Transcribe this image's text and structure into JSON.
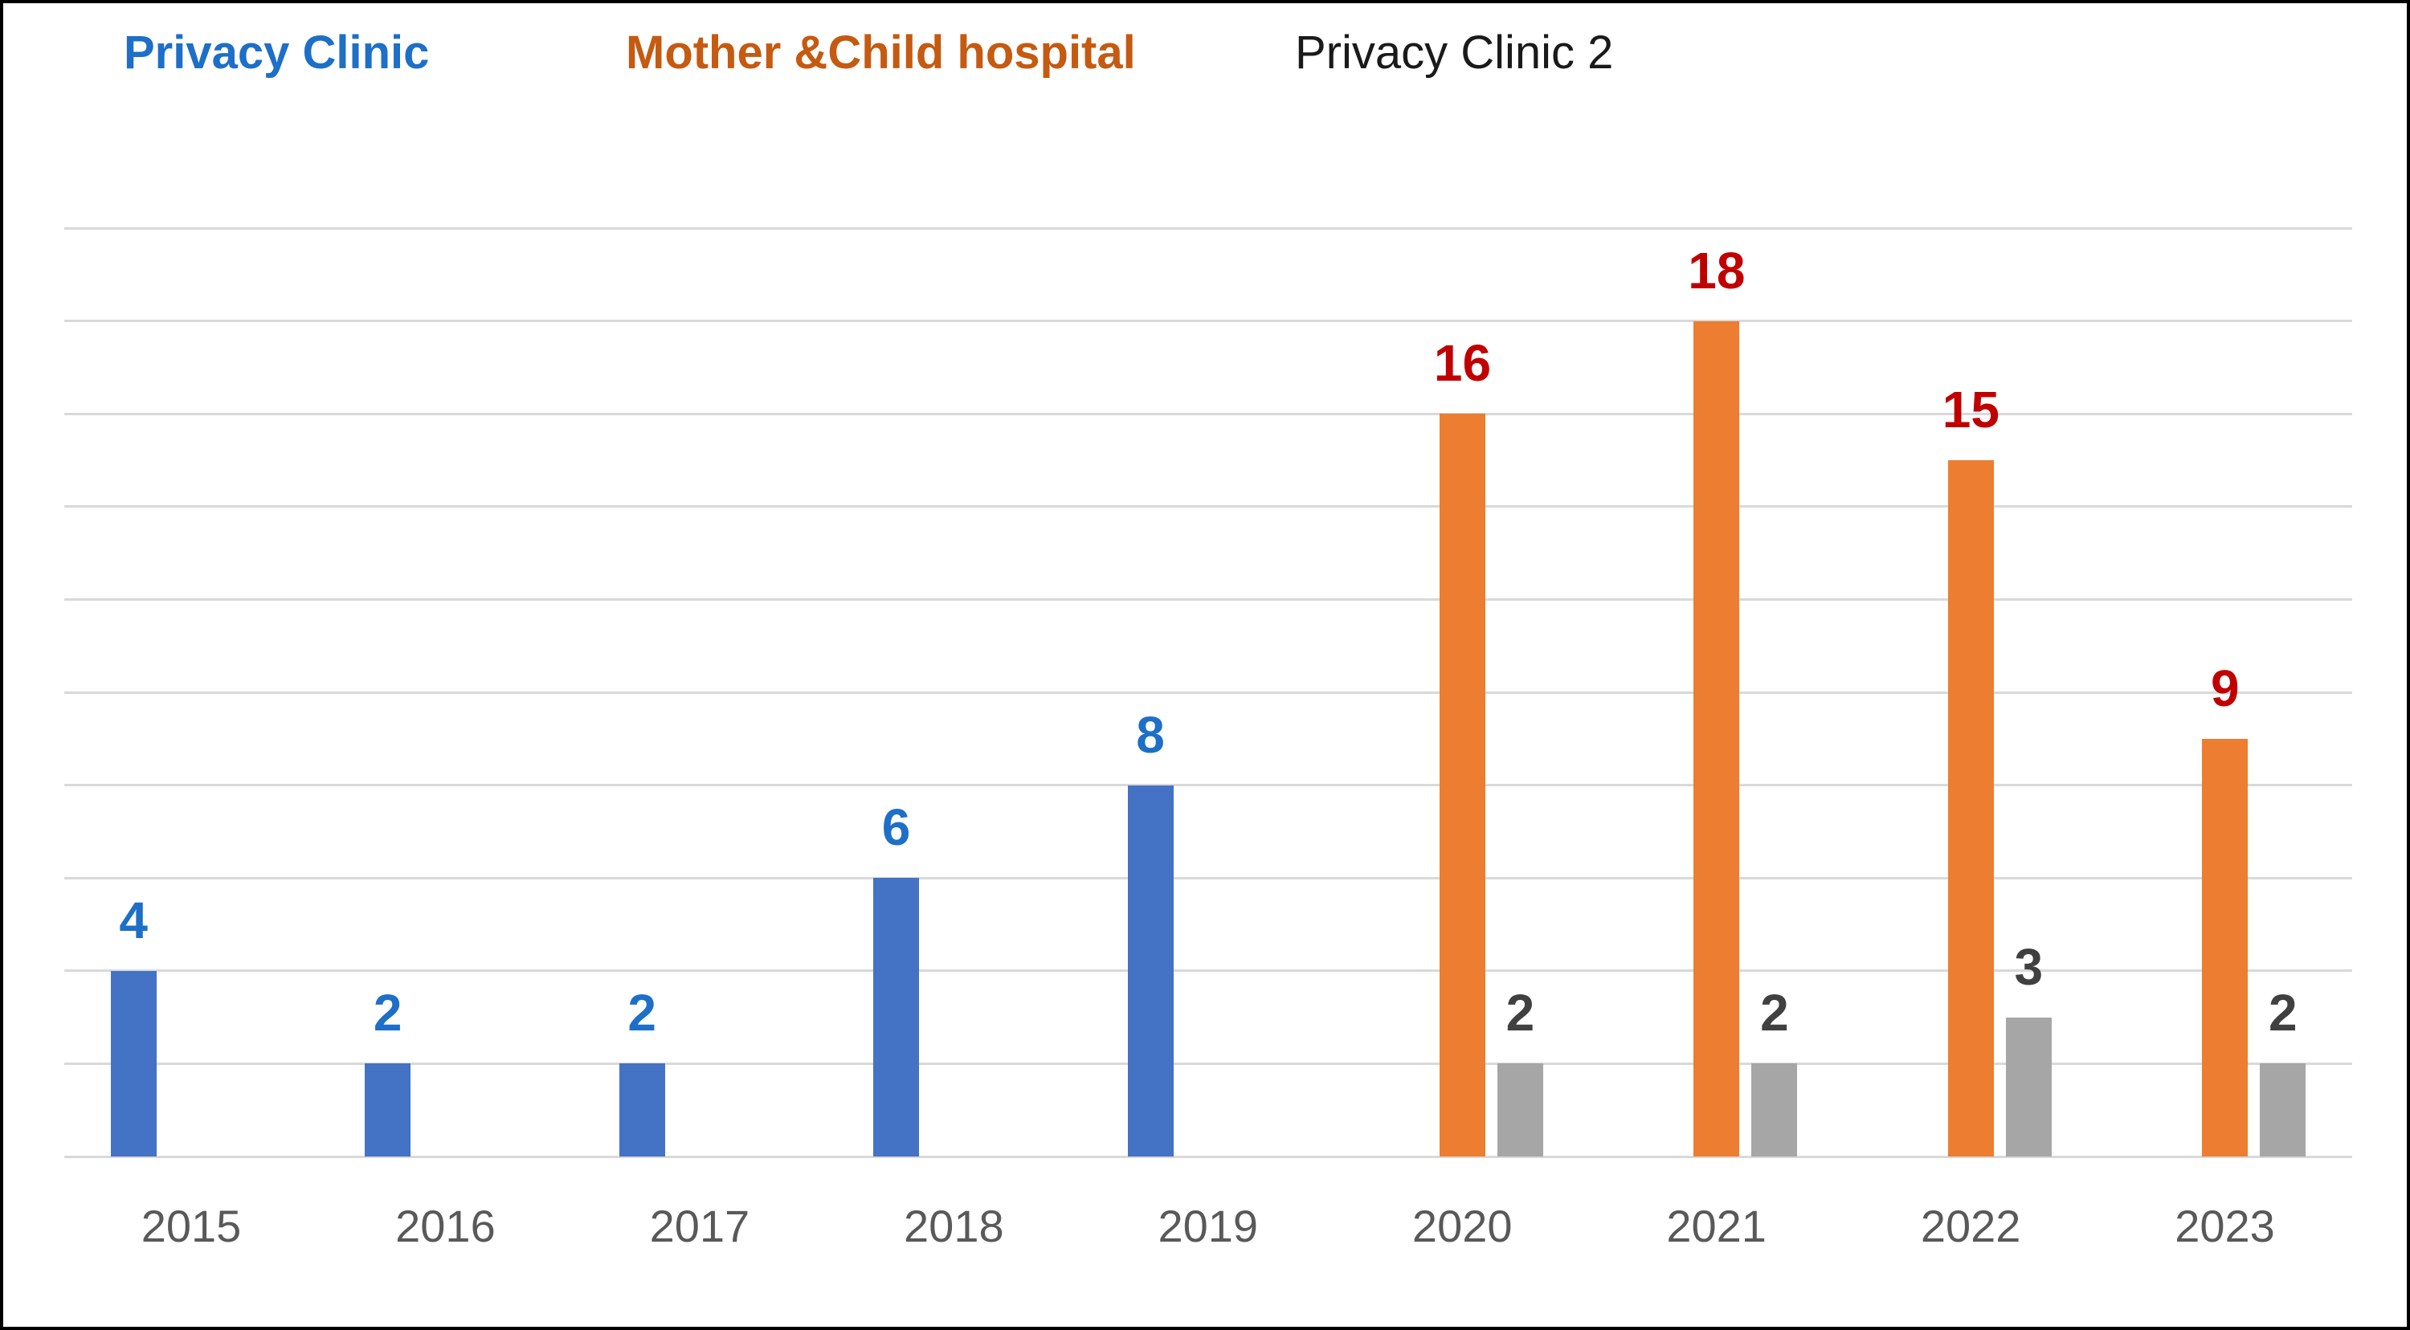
{
  "legend": {
    "items": [
      {
        "label": "Privacy Clinic",
        "color": "#1D6FC8"
      },
      {
        "label": "Mother &Child hospital",
        "color": "#C55A11"
      },
      {
        "label": "Privacy Clinic 2",
        "color": "#1A1A1A"
      }
    ]
  },
  "chart_data": {
    "type": "bar",
    "title": "",
    "xlabel": "",
    "ylabel": "",
    "categories": [
      "2015",
      "2016",
      "2017",
      "2018",
      "2019",
      "2020",
      "2021",
      "2022",
      "2023"
    ],
    "series": [
      {
        "name": "Privacy Clinic",
        "bar_color": "#4472C4",
        "label_color": "#1D6FC8",
        "values": [
          4,
          2,
          2,
          6,
          8,
          null,
          null,
          null,
          null
        ]
      },
      {
        "name": "Mother &Child hospital",
        "bar_color": "#ED7D31",
        "label_color": "#C00000",
        "values": [
          null,
          null,
          null,
          null,
          null,
          16,
          18,
          15,
          9
        ]
      },
      {
        "name": "Privacy Clinic 2",
        "bar_color": "#A6A6A6",
        "label_color": "#404040",
        "values": [
          null,
          null,
          null,
          null,
          null,
          2,
          2,
          3,
          2
        ]
      }
    ],
    "ylim": [
      0,
      20
    ],
    "grid_step": 2,
    "grid_on": true,
    "gridline_color": "#D9D9D9",
    "x_axis_label_color": "#595959",
    "legend_position": "top",
    "data_labels_shown": true,
    "y_axis_labels_shown": false
  }
}
